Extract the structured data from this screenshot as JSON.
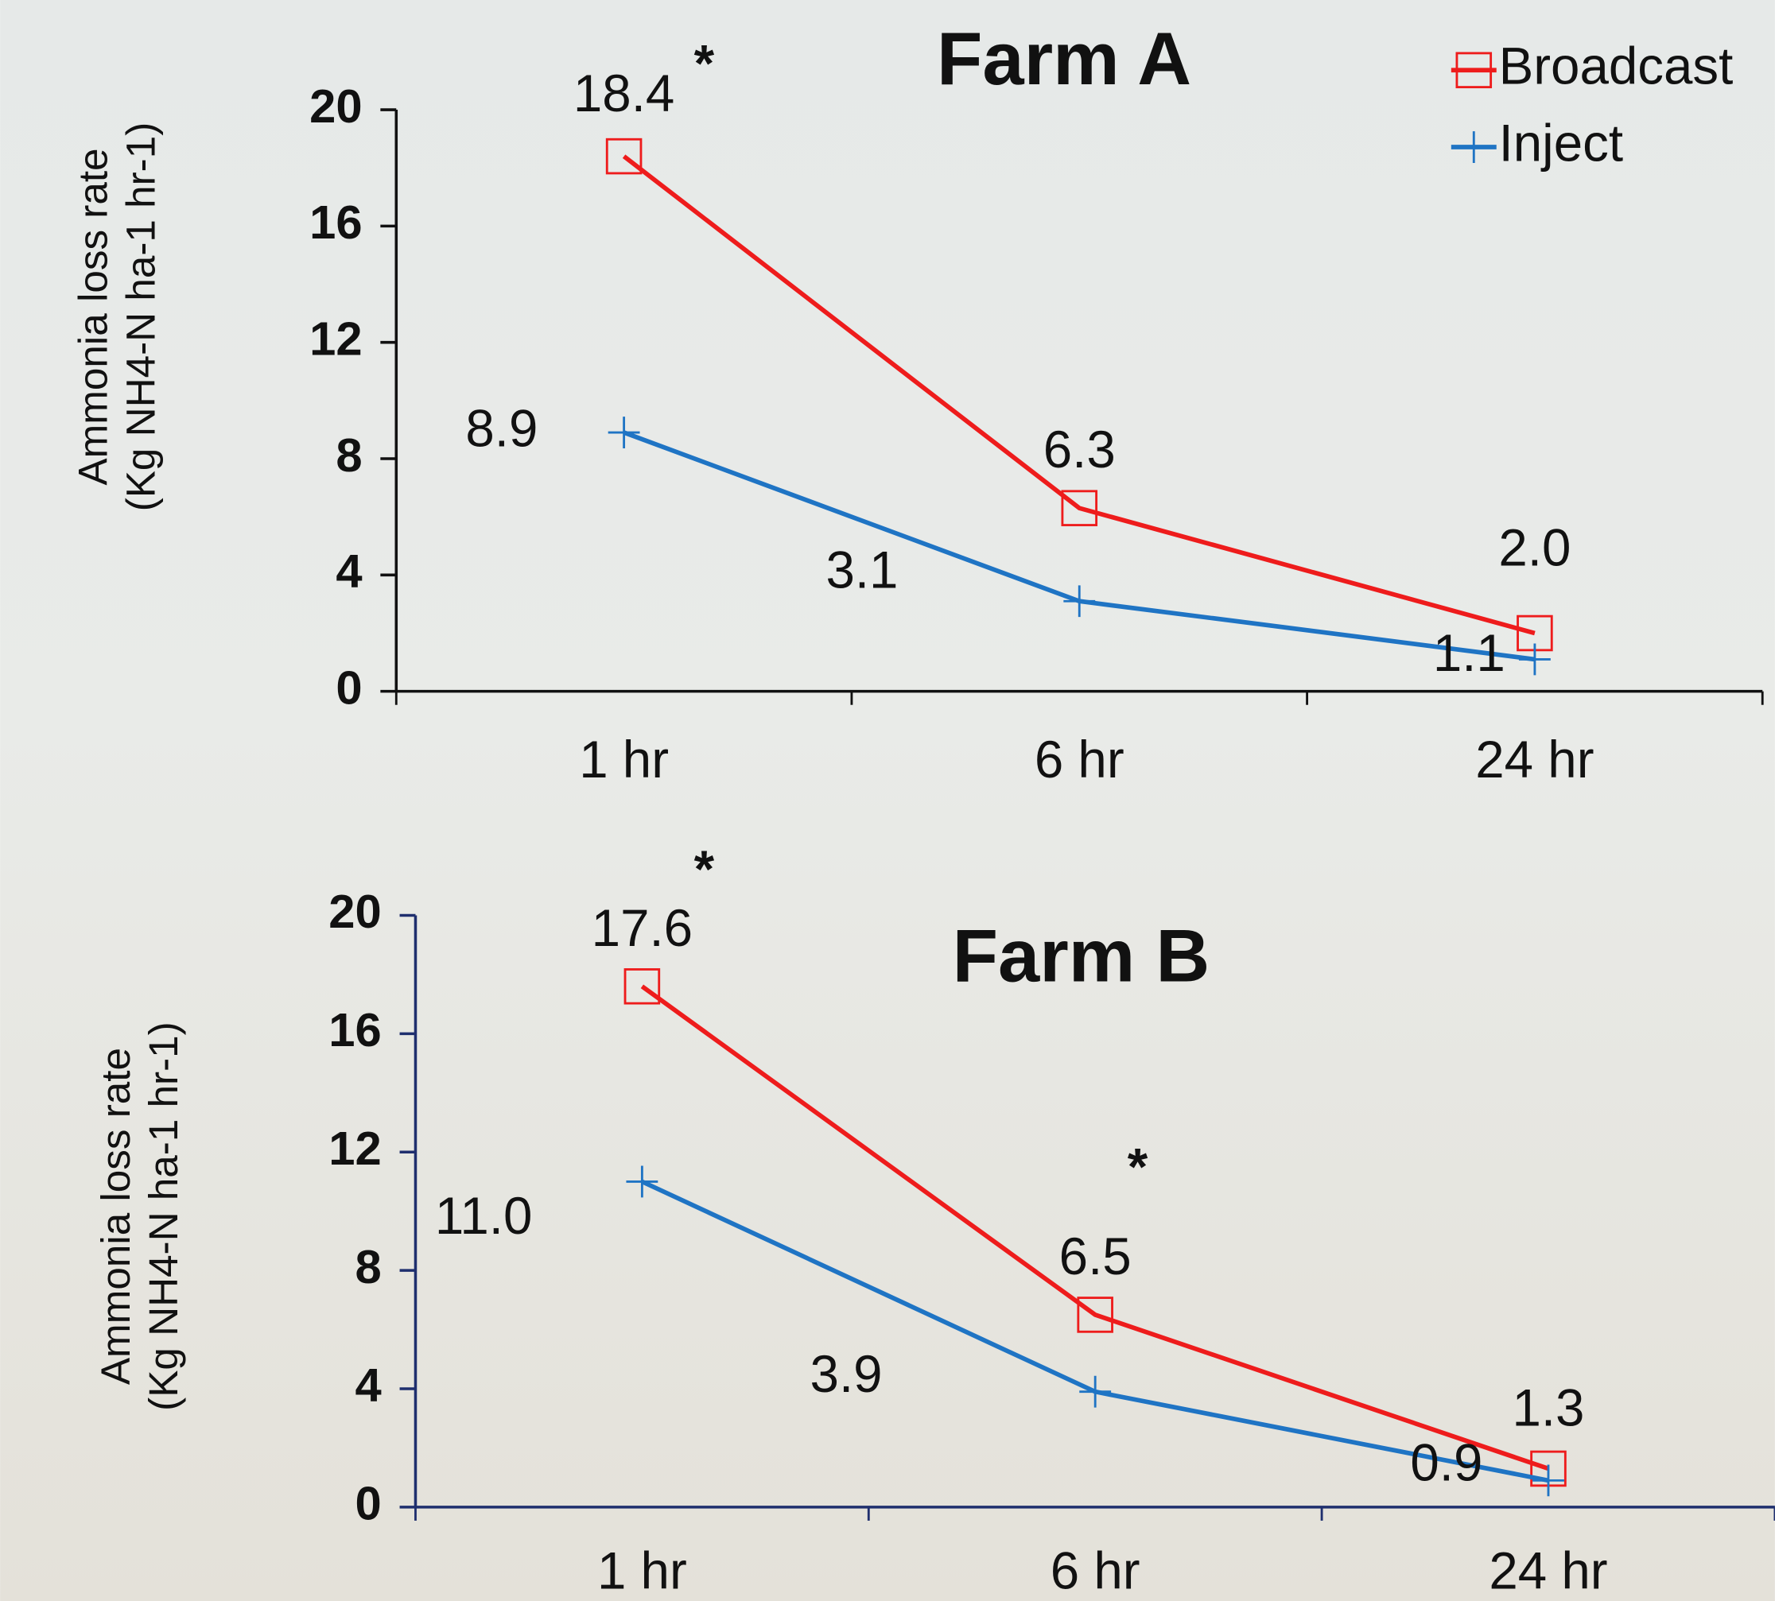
{
  "chart_data": [
    {
      "type": "line",
      "title": "Farm A",
      "y_label": [
        "Ammonia loss rate",
        "(Kg NH4-N ha-1 hr-1)"
      ],
      "categories": [
        "1 hr",
        "6 hr",
        "24 hr"
      ],
      "series": [
        {
          "name": "Broadcast",
          "color": "#ee1c1c",
          "marker": "square",
          "values": [
            18.4,
            6.3,
            2.0
          ],
          "value_labels": [
            "18.4",
            "6.3",
            "2.0"
          ]
        },
        {
          "name": "Inject",
          "color": "#1f74c4",
          "marker": "plus",
          "values": [
            8.9,
            3.1,
            1.1
          ],
          "value_labels": [
            "8.9",
            "3.1",
            "1.1"
          ]
        }
      ],
      "annotations": [
        "*"
      ],
      "ylim": [
        0,
        20
      ],
      "yticks": [
        0,
        4,
        8,
        12,
        16,
        20
      ],
      "legend": "upper right"
    },
    {
      "type": "line",
      "title": "Farm B",
      "y_label": [
        "Ammonia loss rate",
        "(Kg NH4-N ha-1 hr-1)"
      ],
      "categories": [
        "1 hr",
        "6 hr",
        "24 hr"
      ],
      "series": [
        {
          "name": "Broadcast",
          "color": "#ee1c1c",
          "marker": "square",
          "values": [
            17.6,
            6.5,
            1.3
          ],
          "value_labels": [
            "17.6",
            "6.5",
            "1.3"
          ]
        },
        {
          "name": "Inject",
          "color": "#1f74c4",
          "marker": "plus",
          "values": [
            11.0,
            3.9,
            0.9
          ],
          "value_labels": [
            "11.0",
            "3.9",
            "0.9"
          ]
        }
      ],
      "annotations": [
        "*",
        "*"
      ],
      "ylim": [
        0,
        20
      ],
      "yticks": [
        0,
        4,
        8,
        12,
        16,
        20
      ]
    }
  ]
}
